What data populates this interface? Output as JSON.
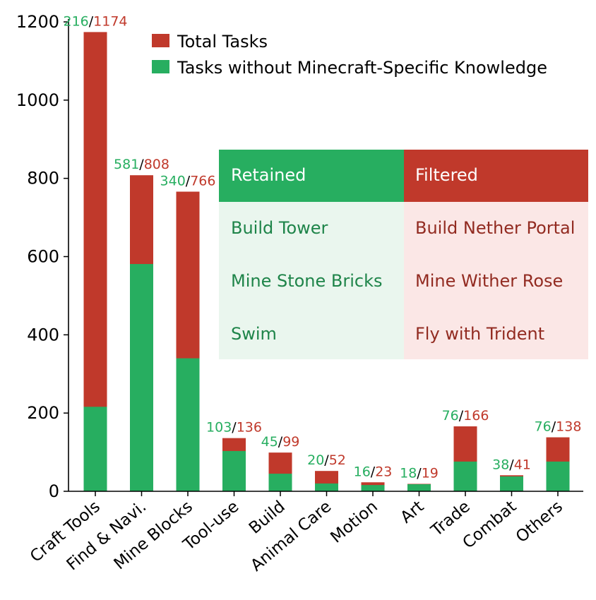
{
  "colors": {
    "total": "#c0392b",
    "without": "#27ae60",
    "retained_head": "#27ae60",
    "filtered_head": "#c0392b",
    "retained_bg": "#eaf6ee",
    "filtered_bg": "#fbe7e6",
    "retained_text": "#1e8449",
    "filtered_text": "#922b21"
  },
  "chart_data": {
    "type": "bar",
    "stacked": "overlay",
    "categories": [
      "Craft Tools",
      "Find & Navi.",
      "Mine Blocks",
      "Tool-use",
      "Build",
      "Animal Care",
      "Motion",
      "Art",
      "Trade",
      "Combat",
      "Others"
    ],
    "series": [
      {
        "name": "Total Tasks",
        "values": [
          1174,
          808,
          766,
          136,
          99,
          52,
          23,
          19,
          166,
          41,
          138
        ]
      },
      {
        "name": "Tasks without Minecraft-Specific Knowledge",
        "values": [
          216,
          581,
          340,
          103,
          45,
          20,
          16,
          18,
          76,
          38,
          76
        ]
      }
    ],
    "data_labels": [
      "216/1174",
      "581/808",
      "340/766",
      "103/136",
      "45/99",
      "20/52",
      "16/23",
      "18/19",
      "76/166",
      "38/41",
      "76/138"
    ],
    "ylim": [
      0,
      1200
    ],
    "yticks": [
      "0",
      "200",
      "400",
      "600",
      "800",
      "1000",
      "1200"
    ],
    "grid": false,
    "legend_position": "top-right",
    "xlabel": "",
    "ylabel": ""
  },
  "table": {
    "headers": [
      "Retained",
      "Filtered"
    ],
    "rows": [
      [
        "Build Tower",
        "Build Nether Portal"
      ],
      [
        "Mine Stone Bricks",
        "Mine Wither Rose"
      ],
      [
        "Swim",
        "Fly with Trident"
      ]
    ]
  }
}
